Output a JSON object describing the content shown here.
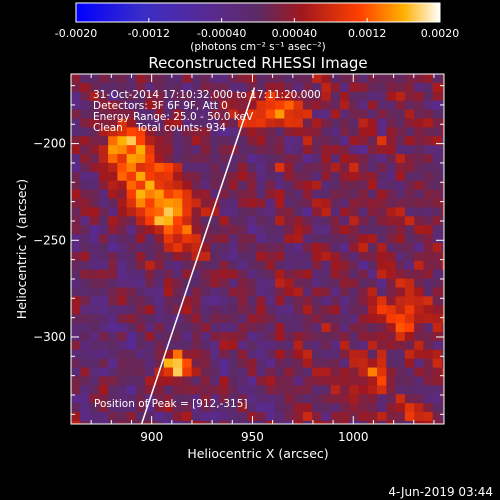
{
  "chart_data": {
    "type": "heatmap",
    "title": "Reconstructed RHESSI Image",
    "xlabel": "Heliocentric X (arcsec)",
    "ylabel": "Heliocentric Y (arcsec)",
    "xlim": [
      860,
      1045
    ],
    "ylim": [
      -345,
      -164
    ],
    "x_ticks": [
      900,
      950,
      1000
    ],
    "y_ticks": [
      -200,
      -250,
      -300
    ],
    "colorbar": {
      "range": [
        -0.002,
        0.002
      ],
      "ticks": [
        "-0.0020",
        "-0.0012",
        "-0.00040",
        "0.00040",
        "0.0012",
        "0.0020"
      ],
      "unit_label": "(photons cm⁻² s⁻¹ asec⁻²)",
      "colormap": "blue-purple-red-orange-yellow-white"
    },
    "annotations": {
      "time": "31-Oct-2014 17:10:32.000 to 17:11:20.000",
      "detectors": "Detectors: 3F 6F 9F, Att 0",
      "energy": "Energy Range: 25.0 - 50.0 keV",
      "counts": "Clean    Total counts: 934",
      "peak": "Position of Peak = [912,-315]"
    },
    "peak_position": [
      912,
      -315
    ],
    "sources": [
      {
        "x": 903,
        "y": -228,
        "sx": 10,
        "sy": 22,
        "rot": -35,
        "amp": 0.0016
      },
      {
        "x": 888,
        "y": -201,
        "sx": 8,
        "sy": 7,
        "rot": 0,
        "amp": 0.0011
      },
      {
        "x": 958,
        "y": -183,
        "sx": 11,
        "sy": 7,
        "rot": 0,
        "amp": 0.0012
      },
      {
        "x": 912,
        "y": -315,
        "sx": 5,
        "sy": 5,
        "rot": 0,
        "amp": 0.002
      },
      {
        "x": 1025,
        "y": -288,
        "sx": 7,
        "sy": 8,
        "rot": 0,
        "amp": 0.0012
      },
      {
        "x": 1010,
        "y": -320,
        "sx": 6,
        "sy": 6,
        "rot": 0,
        "amp": 0.001
      },
      {
        "x": 1028,
        "y": -340,
        "sx": 5,
        "sy": 4,
        "rot": 0,
        "amp": 0.001
      }
    ],
    "limb_line": [
      [
        895,
        -345
      ],
      [
        951,
        -171
      ]
    ]
  },
  "footer": {
    "date": "4-Jun-2019 03:44"
  }
}
